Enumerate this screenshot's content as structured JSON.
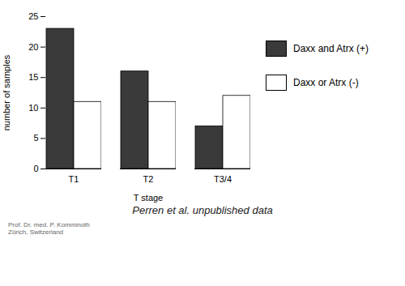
{
  "chart_data": {
    "type": "bar",
    "xlabel": "T stage",
    "ylabel": "number of samples",
    "categories": [
      "T1",
      "T2",
      "T3/4"
    ],
    "series": [
      {
        "name": "Daxx and Atrx (+)",
        "color": "#3a3a3a",
        "values": [
          23,
          16,
          7
        ]
      },
      {
        "name": "Daxx or Atrx (-)",
        "color": "#ffffff",
        "values": [
          11,
          11,
          12
        ]
      }
    ],
    "ylim": [
      0,
      25
    ],
    "yticks": [
      0,
      5,
      10,
      15,
      20,
      25
    ],
    "grid": false,
    "legend": "right",
    "annotations": [
      "Perren et al. unpublished data",
      "Prof. Dr. med. P. Komminoth\nZürich, Switzerland"
    ]
  }
}
